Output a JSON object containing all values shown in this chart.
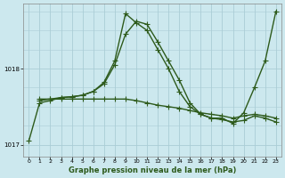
{
  "xlabel": "Graphe pression niveau de la mer (hPa)",
  "bg_color": "#cce8ee",
  "grid_color": "#aacdd6",
  "line_color": "#2d5a1b",
  "marker": "+",
  "markersize": 4,
  "linewidth": 1.0,
  "xlim": [
    -0.5,
    23.5
  ],
  "ylim": [
    1016.85,
    1018.85
  ],
  "yticks": [
    1017,
    1018
  ],
  "xticks": [
    0,
    1,
    2,
    3,
    4,
    5,
    6,
    7,
    8,
    9,
    10,
    11,
    12,
    13,
    14,
    15,
    16,
    17,
    18,
    19,
    20,
    21,
    22,
    23
  ],
  "series": [
    {
      "x": [
        0,
        1,
        2,
        3,
        4,
        5,
        6,
        7,
        8,
        9,
        10,
        11,
        12,
        13,
        14,
        15,
        16,
        17,
        18,
        19,
        20,
        21,
        22,
        23
      ],
      "y": [
        1017.05,
        1017.55,
        1017.58,
        1017.62,
        1017.63,
        1017.65,
        1017.7,
        1017.8,
        1018.05,
        1018.45,
        1018.62,
        1018.58,
        1018.35,
        1018.1,
        1017.85,
        1017.55,
        1017.4,
        1017.35,
        1017.35,
        1017.28,
        1017.42,
        1017.75,
        1018.1,
        1018.75
      ]
    },
    {
      "x": [
        1,
        2,
        3,
        4,
        5,
        6,
        7,
        8,
        9,
        10,
        11,
        12,
        13,
        14,
        15,
        16,
        17,
        18,
        19,
        20,
        21,
        22,
        23
      ],
      "y": [
        1017.58,
        1017.6,
        1017.62,
        1017.63,
        1017.65,
        1017.7,
        1017.82,
        1018.1,
        1018.72,
        1018.6,
        1018.5,
        1018.25,
        1018.0,
        1017.7,
        1017.5,
        1017.4,
        1017.35,
        1017.33,
        1017.3,
        1017.32,
        1017.38,
        1017.35,
        1017.3
      ]
    },
    {
      "x": [
        1,
        2,
        3,
        4,
        5,
        6,
        7,
        8,
        9,
        10,
        11,
        12,
        13,
        14,
        15,
        16,
        17,
        18,
        19,
        20,
        21,
        22,
        23
      ],
      "y": [
        1017.6,
        1017.6,
        1017.6,
        1017.6,
        1017.6,
        1017.6,
        1017.6,
        1017.6,
        1017.6,
        1017.58,
        1017.55,
        1017.52,
        1017.5,
        1017.48,
        1017.45,
        1017.42,
        1017.4,
        1017.38,
        1017.35,
        1017.38,
        1017.4,
        1017.38,
        1017.35
      ]
    }
  ]
}
